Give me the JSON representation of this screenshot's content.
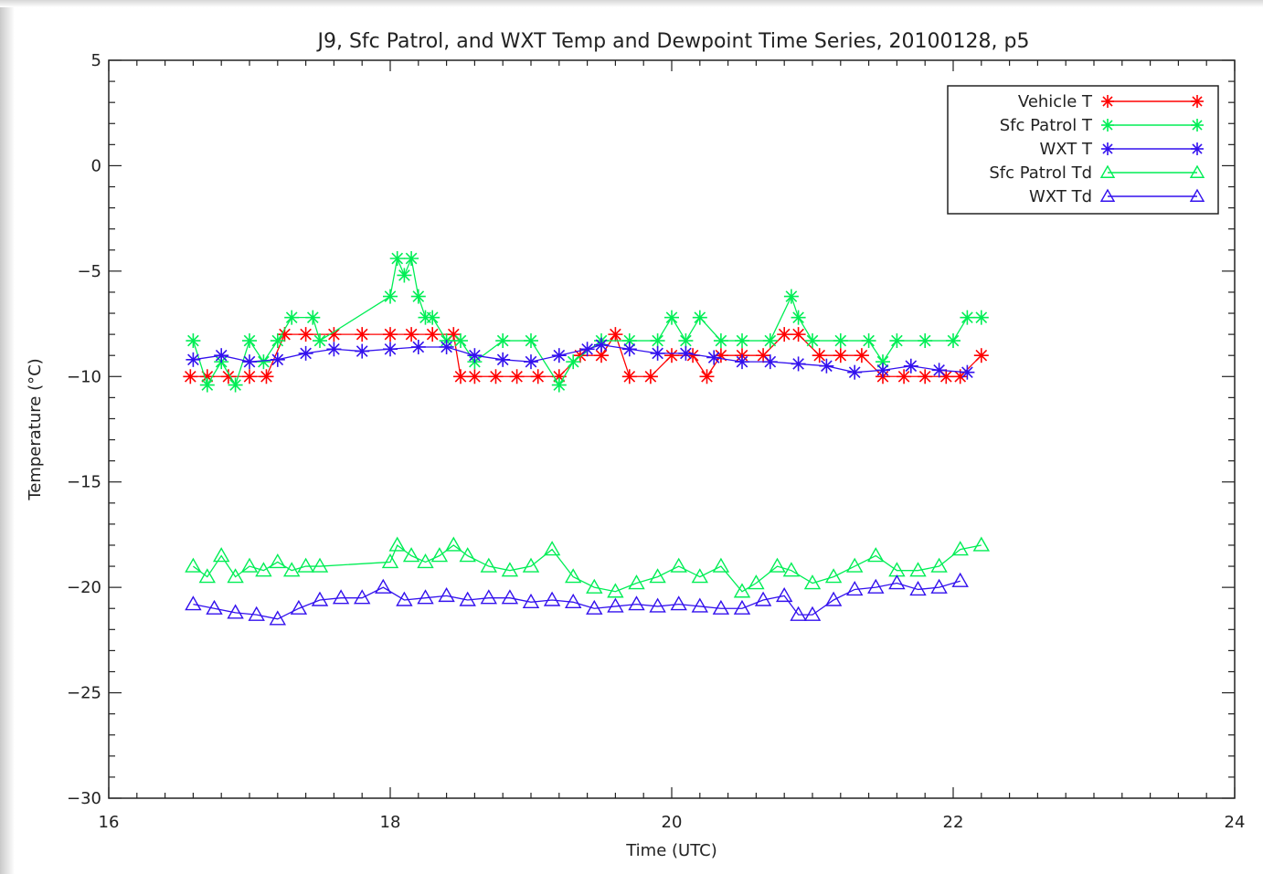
{
  "chart_data": {
    "type": "scatter",
    "title": "J9, Sfc Patrol, and WXT Temp and Dewpoint Time Series, 20100128, p5",
    "xlabel": "Time (UTC)",
    "ylabel": "Temperature (°C)",
    "xlim": [
      16,
      24
    ],
    "ylim": [
      -30,
      5
    ],
    "xticks": [
      16,
      18,
      20,
      22,
      24
    ],
    "yticks": [
      5,
      0,
      -5,
      -10,
      -15,
      -20,
      -25,
      -30
    ],
    "grid": false,
    "legend_position": "top-right",
    "series": [
      {
        "name": "Vehicle T",
        "color": "#ff0000",
        "marker": "asterisk",
        "x": [
          16.58,
          16.7,
          16.85,
          17.0,
          17.12,
          17.25,
          17.4,
          17.6,
          17.8,
          18.0,
          18.15,
          18.3,
          18.45,
          18.5,
          18.6,
          18.75,
          18.9,
          19.05,
          19.2,
          19.35,
          19.5,
          19.6,
          19.7,
          19.85,
          20.0,
          20.15,
          20.25,
          20.35,
          20.5,
          20.65,
          20.8,
          20.9,
          21.05,
          21.2,
          21.35,
          21.5,
          21.65,
          21.8,
          21.95,
          22.05,
          22.2
        ],
        "y": [
          -10,
          -10,
          -10,
          -10,
          -10,
          -8,
          -8,
          -8,
          -8,
          -8,
          -8,
          -8,
          -8,
          -10,
          -10,
          -10,
          -10,
          -10,
          -10,
          -9,
          -9,
          -8,
          -10,
          -10,
          -9,
          -9,
          -10,
          -9,
          -9,
          -9,
          -8,
          -8,
          -9,
          -9,
          -9,
          -10,
          -10,
          -10,
          -10,
          -10,
          -9
        ]
      },
      {
        "name": "Sfc Patrol T",
        "color": "#00ee55",
        "marker": "asterisk",
        "x": [
          16.6,
          16.7,
          16.8,
          16.9,
          17.0,
          17.1,
          17.2,
          17.3,
          17.45,
          17.5,
          18.0,
          18.05,
          18.1,
          18.15,
          18.2,
          18.25,
          18.3,
          18.4,
          18.5,
          18.6,
          18.8,
          19.0,
          19.2,
          19.3,
          19.5,
          19.7,
          19.9,
          20.0,
          20.1,
          20.2,
          20.35,
          20.5,
          20.7,
          20.85,
          20.9,
          21.0,
          21.2,
          21.4,
          21.5,
          21.6,
          21.8,
          22.0,
          22.1,
          22.2
        ],
        "y": [
          -8.3,
          -10.4,
          -9.3,
          -10.4,
          -8.3,
          -9.3,
          -8.3,
          -7.2,
          -7.2,
          -8.3,
          -6.2,
          -4.4,
          -5.2,
          -4.4,
          -6.2,
          -7.2,
          -7.2,
          -8.3,
          -8.3,
          -9.3,
          -8.3,
          -8.3,
          -10.4,
          -9.3,
          -8.3,
          -8.3,
          -8.3,
          -7.2,
          -8.3,
          -7.2,
          -8.3,
          -8.3,
          -8.3,
          -6.2,
          -7.2,
          -8.3,
          -8.3,
          -8.3,
          -9.3,
          -8.3,
          -8.3,
          -8.3,
          -7.2,
          -7.2
        ]
      },
      {
        "name": "WXT T",
        "color": "#3311ee",
        "marker": "asterisk",
        "x": [
          16.6,
          16.8,
          17.0,
          17.2,
          17.4,
          17.6,
          17.8,
          18.0,
          18.2,
          18.4,
          18.6,
          18.8,
          19.0,
          19.2,
          19.4,
          19.5,
          19.7,
          19.9,
          20.1,
          20.3,
          20.5,
          20.7,
          20.9,
          21.1,
          21.3,
          21.5,
          21.7,
          21.9,
          22.1
        ],
        "y": [
          -9.2,
          -9.0,
          -9.3,
          -9.2,
          -8.9,
          -8.7,
          -8.8,
          -8.7,
          -8.6,
          -8.6,
          -9.0,
          -9.2,
          -9.3,
          -9.0,
          -8.7,
          -8.5,
          -8.7,
          -8.9,
          -8.9,
          -9.1,
          -9.3,
          -9.3,
          -9.4,
          -9.5,
          -9.8,
          -9.7,
          -9.5,
          -9.7,
          -9.8
        ]
      },
      {
        "name": "Sfc Patrol Td",
        "color": "#00ee55",
        "marker": "triangle",
        "x": [
          16.6,
          16.7,
          16.8,
          16.9,
          17.0,
          17.1,
          17.2,
          17.3,
          17.4,
          17.5,
          18.0,
          18.05,
          18.15,
          18.25,
          18.35,
          18.45,
          18.55,
          18.7,
          18.85,
          19.0,
          19.15,
          19.3,
          19.45,
          19.6,
          19.75,
          19.9,
          20.05,
          20.2,
          20.35,
          20.5,
          20.6,
          20.75,
          20.85,
          21.0,
          21.15,
          21.3,
          21.45,
          21.6,
          21.75,
          21.9,
          22.05,
          22.2
        ],
        "y": [
          -19.0,
          -19.5,
          -18.5,
          -19.5,
          -19.0,
          -19.2,
          -18.8,
          -19.2,
          -19.0,
          -19.0,
          -18.8,
          -18.0,
          -18.5,
          -18.8,
          -18.5,
          -18.0,
          -18.5,
          -19.0,
          -19.2,
          -19.0,
          -18.2,
          -19.5,
          -20.0,
          -20.2,
          -19.8,
          -19.5,
          -19.0,
          -19.5,
          -19.0,
          -20.2,
          -19.8,
          -19.0,
          -19.2,
          -19.8,
          -19.5,
          -19.0,
          -18.5,
          -19.2,
          -19.2,
          -19.0,
          -18.2,
          -18.0
        ]
      },
      {
        "name": "WXT Td",
        "color": "#3311ee",
        "marker": "triangle",
        "x": [
          16.6,
          16.75,
          16.9,
          17.05,
          17.2,
          17.35,
          17.5,
          17.65,
          17.8,
          17.95,
          18.1,
          18.25,
          18.4,
          18.55,
          18.7,
          18.85,
          19.0,
          19.15,
          19.3,
          19.45,
          19.6,
          19.75,
          19.9,
          20.05,
          20.2,
          20.35,
          20.5,
          20.65,
          20.8,
          20.9,
          21.0,
          21.15,
          21.3,
          21.45,
          21.6,
          21.75,
          21.9,
          22.05
        ],
        "y": [
          -20.8,
          -21.0,
          -21.2,
          -21.3,
          -21.5,
          -21.0,
          -20.6,
          -20.5,
          -20.5,
          -20.0,
          -20.6,
          -20.5,
          -20.4,
          -20.6,
          -20.5,
          -20.5,
          -20.7,
          -20.6,
          -20.7,
          -21.0,
          -20.9,
          -20.8,
          -20.9,
          -20.8,
          -20.9,
          -21.0,
          -21.0,
          -20.6,
          -20.4,
          -21.3,
          -21.3,
          -20.6,
          -20.1,
          -20.0,
          -19.8,
          -20.1,
          -20.0,
          -19.7
        ]
      }
    ]
  }
}
